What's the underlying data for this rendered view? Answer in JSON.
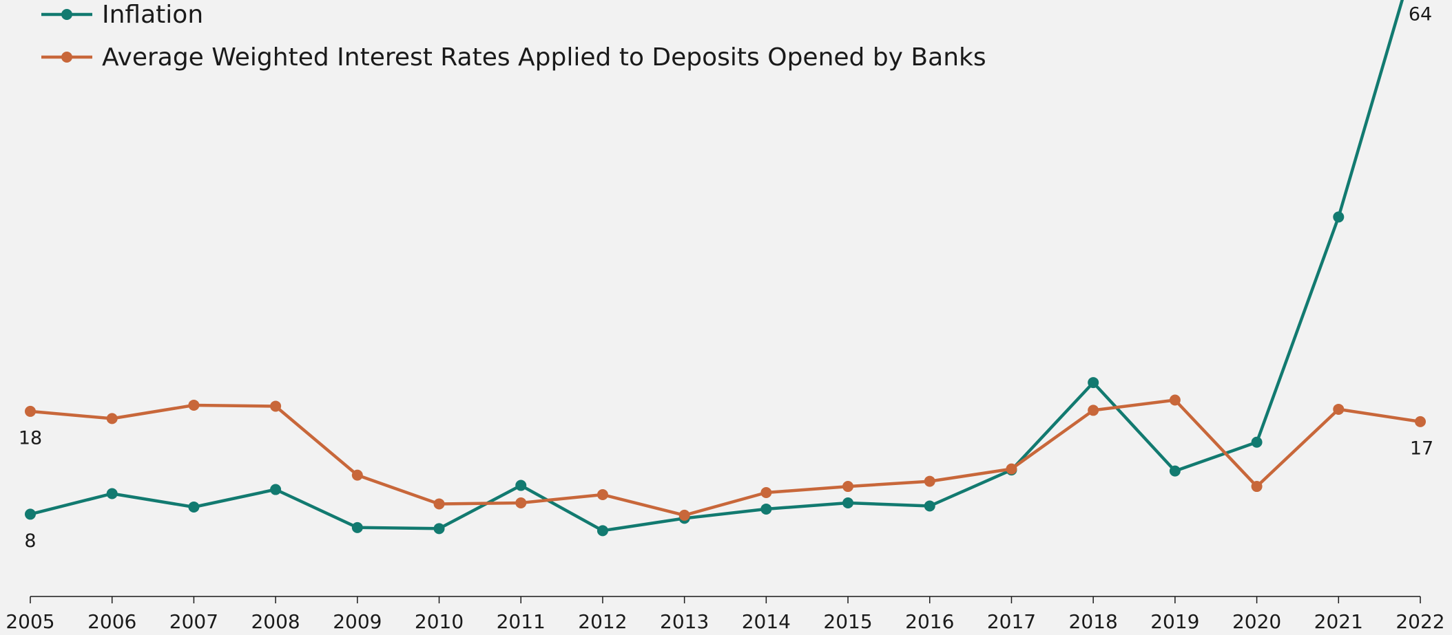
{
  "chart_data": {
    "type": "line",
    "categories": [
      "2005",
      "2006",
      "2007",
      "2008",
      "2009",
      "2010",
      "2011",
      "2012",
      "2013",
      "2014",
      "2015",
      "2016",
      "2017",
      "2018",
      "2019",
      "2020",
      "2021",
      "2022"
    ],
    "series": [
      {
        "name": "Inflation",
        "color": "#127a70",
        "values": [
          8,
          10.0,
          8.7,
          10.4,
          6.7,
          6.6,
          10.8,
          6.4,
          7.6,
          8.5,
          9.1,
          8.8,
          12.3,
          20.8,
          12.2,
          15.0,
          36.9,
          64
        ]
      },
      {
        "name": "Average Weighted Interest Rates Applied to Deposits Opened by Banks",
        "color": "#c8673a",
        "values": [
          18,
          17.3,
          18.6,
          18.5,
          11.8,
          9.0,
          9.1,
          9.9,
          7.9,
          10.1,
          10.7,
          11.2,
          12.4,
          18.1,
          19.1,
          10.7,
          18.2,
          17
        ]
      }
    ],
    "ylim": [
      0,
      58
    ],
    "legend": "top-left",
    "grid": false
  }
}
